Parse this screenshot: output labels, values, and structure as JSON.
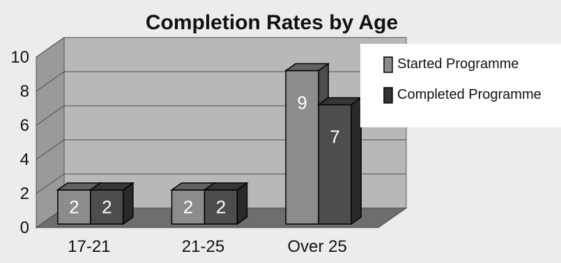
{
  "chart_data": {
    "type": "bar",
    "title": "Completion Rates by Age",
    "categories": [
      "17-21",
      "21-25",
      "Over 25"
    ],
    "series": [
      {
        "name": "Started Programme",
        "values": [
          2,
          2,
          9
        ],
        "color": "#8c8c8c"
      },
      {
        "name": "Completed Programme",
        "values": [
          2,
          2,
          7
        ],
        "color": "#4d4d4d"
      }
    ],
    "ylim": [
      0,
      10
    ],
    "yticks": [
      "0",
      "2",
      "4",
      "6",
      "8",
      "10"
    ],
    "grid": true,
    "legend": "right",
    "style": "3d",
    "data_labels": true
  }
}
